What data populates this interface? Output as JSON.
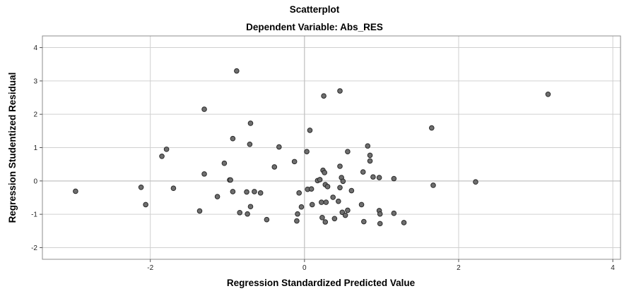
{
  "chart_data": {
    "type": "scatter",
    "title": "Scatterplot",
    "subtitle": "Dependent Variable: Abs_RES",
    "xlabel": "Regression Standardized Predicted Value",
    "ylabel": "Regression Studentized Residual",
    "xlim": [
      -3.4,
      4.1
    ],
    "ylim": [
      -2.35,
      4.35
    ],
    "xticks": [
      -2,
      0,
      2,
      4
    ],
    "yticks": [
      -2,
      -1,
      0,
      1,
      2,
      3,
      4
    ],
    "grid": true,
    "marker_color": "#6e6e6e",
    "marker_edge": "#2a2a2a",
    "points": [
      {
        "x": -2.97,
        "y": -0.31
      },
      {
        "x": -2.12,
        "y": -0.19
      },
      {
        "x": -2.06,
        "y": -0.71
      },
      {
        "x": -1.85,
        "y": 0.74
      },
      {
        "x": -1.79,
        "y": 0.95
      },
      {
        "x": -1.7,
        "y": -0.22
      },
      {
        "x": -1.36,
        "y": -0.9
      },
      {
        "x": -1.3,
        "y": 2.15
      },
      {
        "x": -1.3,
        "y": 0.21
      },
      {
        "x": -1.13,
        "y": -0.47
      },
      {
        "x": -1.04,
        "y": 0.53
      },
      {
        "x": -0.97,
        "y": 0.03
      },
      {
        "x": -0.96,
        "y": 0.03
      },
      {
        "x": -0.93,
        "y": 1.27
      },
      {
        "x": -0.93,
        "y": -0.32
      },
      {
        "x": -0.88,
        "y": 3.3
      },
      {
        "x": -0.84,
        "y": -0.95
      },
      {
        "x": -0.75,
        "y": -0.33
      },
      {
        "x": -0.74,
        "y": -0.99
      },
      {
        "x": -0.71,
        "y": 1.1
      },
      {
        "x": -0.7,
        "y": 1.73
      },
      {
        "x": -0.7,
        "y": -0.77
      },
      {
        "x": -0.65,
        "y": -0.32
      },
      {
        "x": -0.57,
        "y": -0.36
      },
      {
        "x": -0.49,
        "y": -1.16
      },
      {
        "x": -0.39,
        "y": 0.42
      },
      {
        "x": -0.33,
        "y": 1.02
      },
      {
        "x": -0.13,
        "y": 0.58
      },
      {
        "x": -0.1,
        "y": -1.2
      },
      {
        "x": -0.09,
        "y": -0.99
      },
      {
        "x": -0.07,
        "y": -0.36
      },
      {
        "x": -0.04,
        "y": -0.78
      },
      {
        "x": 0.03,
        "y": 0.88
      },
      {
        "x": 0.04,
        "y": -0.25
      },
      {
        "x": 0.07,
        "y": 1.52
      },
      {
        "x": 0.09,
        "y": -0.24
      },
      {
        "x": 0.1,
        "y": -0.71
      },
      {
        "x": 0.17,
        "y": 0.01
      },
      {
        "x": 0.2,
        "y": 0.04
      },
      {
        "x": 0.22,
        "y": -0.64
      },
      {
        "x": 0.23,
        "y": -1.1
      },
      {
        "x": 0.24,
        "y": 0.32
      },
      {
        "x": 0.25,
        "y": 2.55
      },
      {
        "x": 0.26,
        "y": 0.25
      },
      {
        "x": 0.27,
        "y": -1.23
      },
      {
        "x": 0.27,
        "y": -0.11
      },
      {
        "x": 0.28,
        "y": -0.64
      },
      {
        "x": 0.3,
        "y": -0.17
      },
      {
        "x": 0.37,
        "y": -0.49
      },
      {
        "x": 0.39,
        "y": -1.13
      },
      {
        "x": 0.44,
        "y": -0.61
      },
      {
        "x": 0.46,
        "y": -0.2
      },
      {
        "x": 0.46,
        "y": 0.44
      },
      {
        "x": 0.46,
        "y": 2.7
      },
      {
        "x": 0.48,
        "y": 0.1
      },
      {
        "x": 0.49,
        "y": -0.94
      },
      {
        "x": 0.5,
        "y": -0.01
      },
      {
        "x": 0.53,
        "y": -1.03
      },
      {
        "x": 0.56,
        "y": -0.88
      },
      {
        "x": 0.56,
        "y": 0.88
      },
      {
        "x": 0.61,
        "y": -0.29
      },
      {
        "x": 0.74,
        "y": -0.71
      },
      {
        "x": 0.76,
        "y": 0.27
      },
      {
        "x": 0.77,
        "y": -1.22
      },
      {
        "x": 0.82,
        "y": 1.05
      },
      {
        "x": 0.85,
        "y": 0.77
      },
      {
        "x": 0.85,
        "y": 0.6
      },
      {
        "x": 0.89,
        "y": 0.12
      },
      {
        "x": 0.97,
        "y": 0.1
      },
      {
        "x": 0.97,
        "y": -0.89
      },
      {
        "x": 0.98,
        "y": -1.28
      },
      {
        "x": 0.98,
        "y": -0.99
      },
      {
        "x": 1.16,
        "y": 0.07
      },
      {
        "x": 1.16,
        "y": -0.97
      },
      {
        "x": 1.29,
        "y": -1.25
      },
      {
        "x": 1.65,
        "y": 1.59
      },
      {
        "x": 1.67,
        "y": -0.13
      },
      {
        "x": 2.22,
        "y": -0.03
      },
      {
        "x": 3.16,
        "y": 2.6
      }
    ]
  }
}
